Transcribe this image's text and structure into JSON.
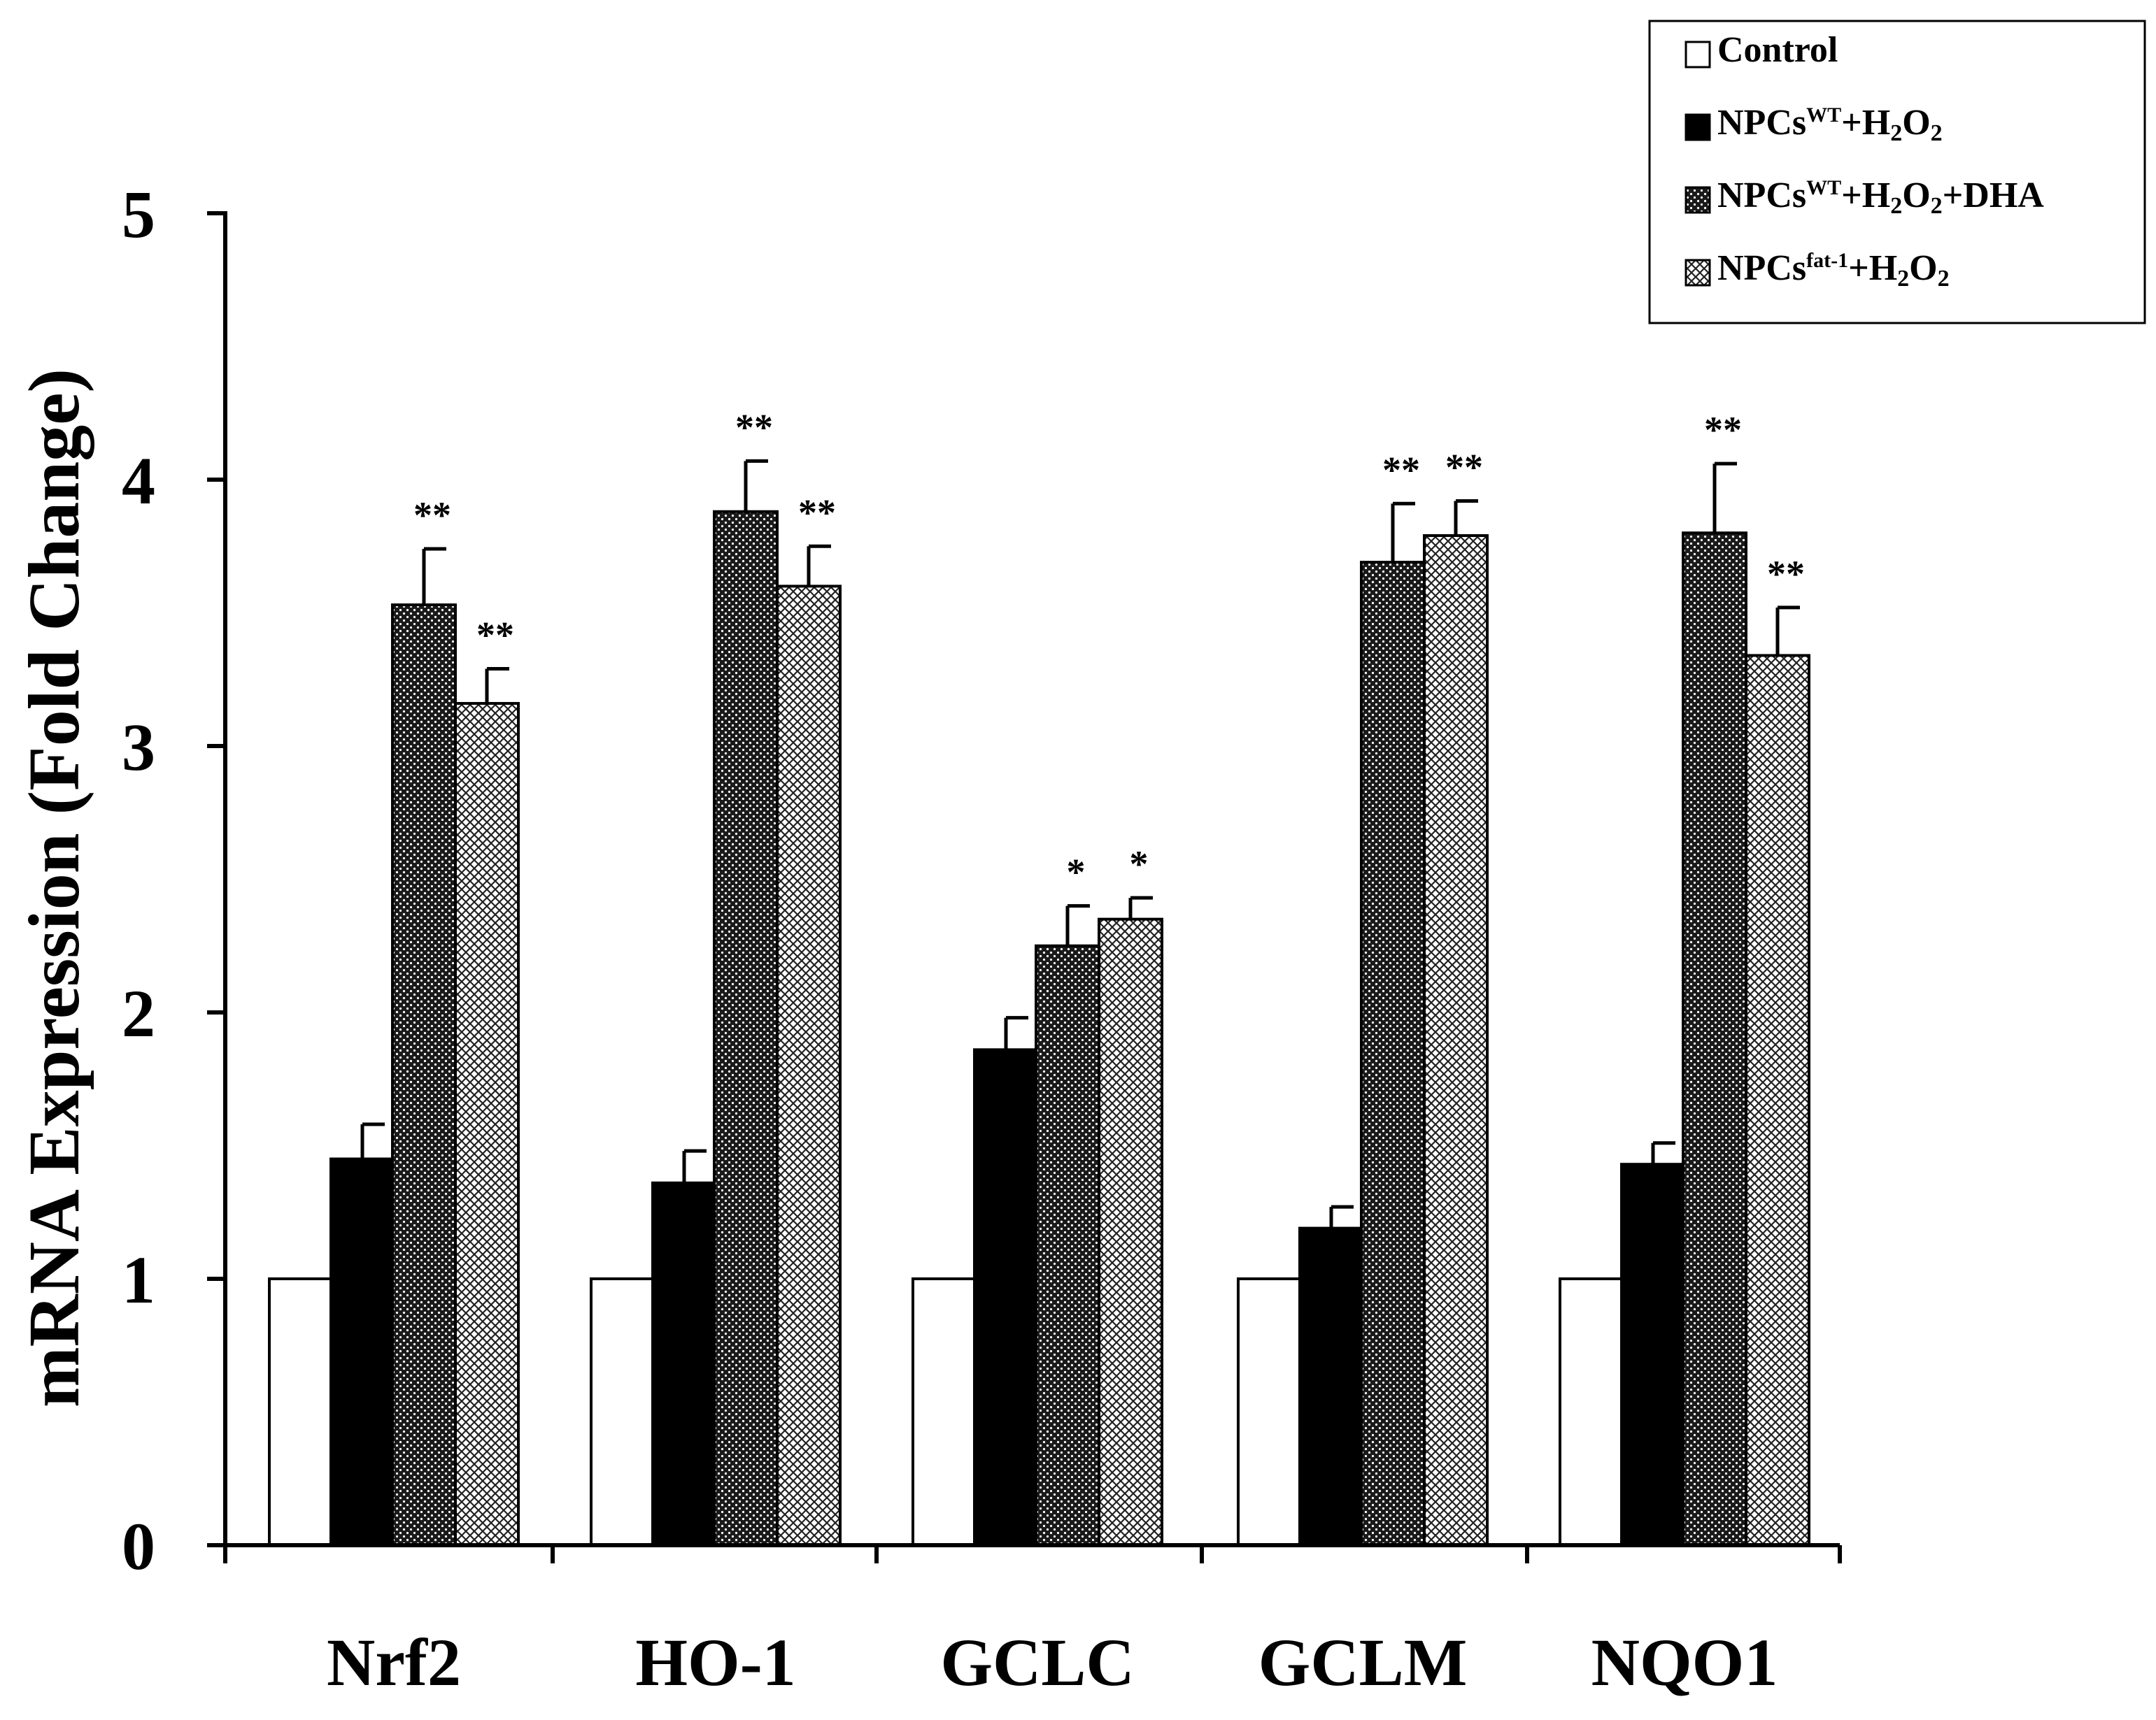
{
  "chart_data": {
    "type": "bar",
    "title": "",
    "xlabel": "",
    "ylabel": "mRNA Expression (Fold Change)",
    "ylim": [
      0,
      5
    ],
    "yticks": [
      "0",
      "1",
      "2",
      "3",
      "4",
      "5"
    ],
    "grid": false,
    "legend_position": "top-right",
    "categories": [
      "Nrf2",
      "HO-1",
      "GCLC",
      "GCLM",
      "NQO1"
    ],
    "series": [
      {
        "name": "Control",
        "legend_parts": [
          {
            "text": "Control",
            "style": "normal"
          }
        ],
        "fill": "white",
        "values": [
          1,
          1,
          1,
          1,
          1
        ],
        "errors": [
          0,
          0,
          0,
          0,
          0
        ],
        "significance": [
          "",
          "",
          "",
          "",
          ""
        ]
      },
      {
        "name": "NPCsWT+H2O2",
        "legend_parts": [
          {
            "text": "NPCs",
            "style": "normal"
          },
          {
            "text": "WT",
            "style": "sup"
          },
          {
            "text": "+H",
            "style": "normal"
          },
          {
            "text": "2",
            "style": "sub"
          },
          {
            "text": "O",
            "style": "normal"
          },
          {
            "text": "2",
            "style": "sub"
          }
        ],
        "fill": "black",
        "values": [
          1.45,
          1.36,
          1.86,
          1.19,
          1.43
        ],
        "errors": [
          0.13,
          0.12,
          0.12,
          0.08,
          0.08
        ],
        "significance": [
          "",
          "",
          "",
          "",
          ""
        ]
      },
      {
        "name": "NPCsWT+H2O2+DHA",
        "legend_parts": [
          {
            "text": "NPCs",
            "style": "normal"
          },
          {
            "text": "WT",
            "style": "sup"
          },
          {
            "text": "+H",
            "style": "normal"
          },
          {
            "text": "2",
            "style": "sub"
          },
          {
            "text": "O",
            "style": "normal"
          },
          {
            "text": "2",
            "style": "sub"
          },
          {
            "text": "+DHA",
            "style": "normal"
          }
        ],
        "fill": "dark-dotted",
        "values": [
          3.53,
          3.88,
          2.25,
          3.69,
          3.8
        ],
        "errors": [
          0.21,
          0.19,
          0.15,
          0.22,
          0.26
        ],
        "significance": [
          "**",
          "**",
          "*",
          "**",
          "**"
        ]
      },
      {
        "name": "NPCsfat-1+H2O2",
        "legend_parts": [
          {
            "text": "NPCs",
            "style": "normal"
          },
          {
            "text": "fat-1",
            "style": "sup"
          },
          {
            "text": "+H",
            "style": "normal"
          },
          {
            "text": "2",
            "style": "sub"
          },
          {
            "text": "O",
            "style": "normal"
          },
          {
            "text": "2",
            "style": "sub"
          }
        ],
        "fill": "light-crosshatch",
        "values": [
          3.16,
          3.6,
          2.35,
          3.79,
          3.34
        ],
        "errors": [
          0.13,
          0.15,
          0.08,
          0.13,
          0.18
        ],
        "significance": [
          "**",
          "**",
          "*",
          "**",
          "**"
        ]
      }
    ]
  }
}
